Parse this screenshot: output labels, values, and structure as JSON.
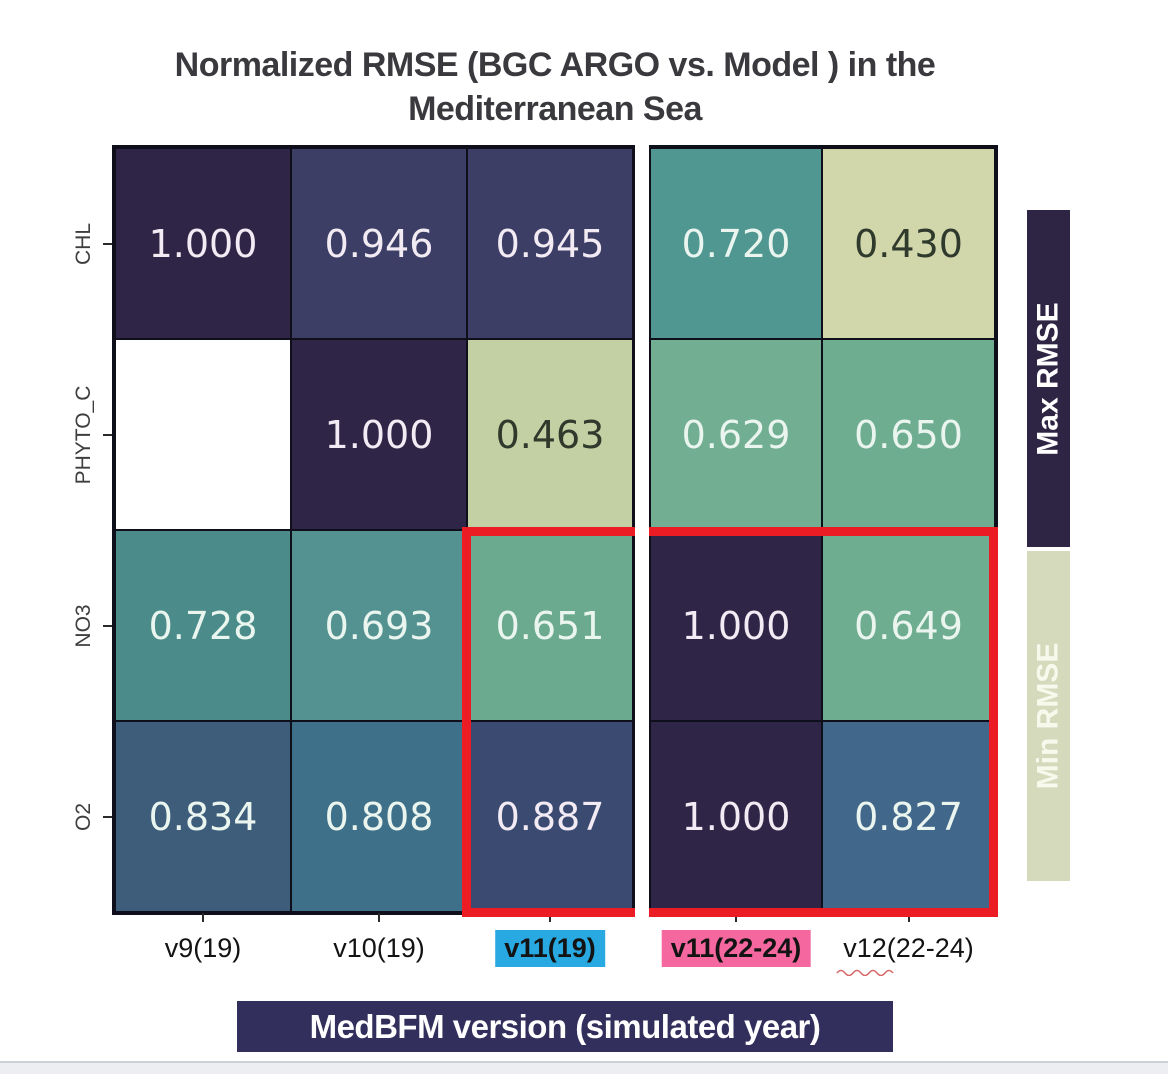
{
  "title": {
    "line1": "Normalized RMSE (BGC ARGO vs. Model ) in the",
    "line2": "Mediterranean Sea"
  },
  "y_axis": {
    "labels": [
      "CHL",
      "PHYTO_C",
      "NO3",
      "O2"
    ]
  },
  "x_axis": {
    "title": "MedBFM version (simulated year)",
    "labels": [
      {
        "text": "v9(19)",
        "highlight": null,
        "bold": false,
        "squiggle": false
      },
      {
        "text": "v10(19)",
        "highlight": null,
        "bold": false,
        "squiggle": false
      },
      {
        "text": "v11(19)",
        "highlight": "#29a9e1",
        "bold": true,
        "squiggle": false
      },
      {
        "text": "v11(22-24)",
        "highlight": "#f4679f",
        "bold": true,
        "squiggle": false
      },
      {
        "text": "v12(22-24)",
        "highlight": null,
        "bold": false,
        "squiggle": true
      }
    ]
  },
  "legend": {
    "max": {
      "label": "Max RMSE",
      "bg": "#2e2444",
      "fg": "#ffffff"
    },
    "min": {
      "label": "Min RMSE",
      "bg": "#d6dabd",
      "fg": "#f7f9ec"
    }
  },
  "cells": [
    [
      {
        "v": "1.000",
        "bg": "#2f2546",
        "fg": "#f2ebf3"
      },
      {
        "v": "0.946",
        "bg": "#3d3e66",
        "fg": "#f2ebf3"
      },
      {
        "v": "0.945",
        "bg": "#3d3e66",
        "fg": "#f2ebf3"
      },
      {
        "v": "0.720",
        "bg": "#4f9790",
        "fg": "#e9f5ee"
      },
      {
        "v": "0.430",
        "bg": "#d2d6ab",
        "fg": "#2f3a2d"
      }
    ],
    [
      {
        "v": "",
        "bg": "#ffffff",
        "fg": "#000000"
      },
      {
        "v": "1.000",
        "bg": "#2f2546",
        "fg": "#f2ebf3"
      },
      {
        "v": "0.463",
        "bg": "#c3d0a3",
        "fg": "#2f3a2d"
      },
      {
        "v": "0.629",
        "bg": "#72ae91",
        "fg": "#e9f5ee"
      },
      {
        "v": "0.650",
        "bg": "#6fad90",
        "fg": "#e9f5ee"
      }
    ],
    [
      {
        "v": "0.728",
        "bg": "#4b8c8a",
        "fg": "#e9f5ee"
      },
      {
        "v": "0.693",
        "bg": "#539290",
        "fg": "#e9f5ee"
      },
      {
        "v": "0.651",
        "bg": "#6baa8e",
        "fg": "#e9f5ee"
      },
      {
        "v": "1.000",
        "bg": "#2f2546",
        "fg": "#f2ebf3"
      },
      {
        "v": "0.649",
        "bg": "#6fad90",
        "fg": "#e9f5ee"
      }
    ],
    [
      {
        "v": "0.834",
        "bg": "#3d5d7b",
        "fg": "#e9f5ee"
      },
      {
        "v": "0.808",
        "bg": "#3f7089",
        "fg": "#e9f5ee"
      },
      {
        "v": "0.887",
        "bg": "#3b4a71",
        "fg": "#f2ebf3"
      },
      {
        "v": "1.000",
        "bg": "#2f2546",
        "fg": "#f2ebf3"
      },
      {
        "v": "0.827",
        "bg": "#41678a",
        "fg": "#e9f5ee"
      }
    ]
  ],
  "chart_data": {
    "type": "heatmap",
    "title": "Normalized RMSE (BGC ARGO vs. Model ) in the Mediterranean Sea",
    "xlabel": "MedBFM version (simulated year)",
    "ylabel": "",
    "x_categories": [
      "v9(19)",
      "v10(19)",
      "v11(19)",
      "v11(22-24)",
      "v12(22-24)"
    ],
    "y_categories": [
      "CHL",
      "PHYTO_C",
      "NO3",
      "O2"
    ],
    "values": [
      [
        1.0,
        0.946,
        0.945,
        0.72,
        0.43
      ],
      [
        null,
        1.0,
        0.463,
        0.629,
        0.65
      ],
      [
        0.728,
        0.693,
        0.651,
        1.0,
        0.649
      ],
      [
        0.834,
        0.808,
        0.887,
        1.0,
        0.827
      ]
    ],
    "value_range": [
      0.43,
      1.0
    ],
    "colorbar": {
      "max_label": "Max RMSE",
      "min_label": "Min RMSE",
      "dark_is_max": true
    },
    "annotations": {
      "red_box_region": "rows NO3 and O2, columns v11(19) through v12(22-24)",
      "column_highlights": {
        "v11(19)": "#29a9e1",
        "v11(22-24)": "#f4679f"
      },
      "gap_after_column": "v11(19)"
    },
    "legend_position": "right",
    "grid": "on"
  }
}
